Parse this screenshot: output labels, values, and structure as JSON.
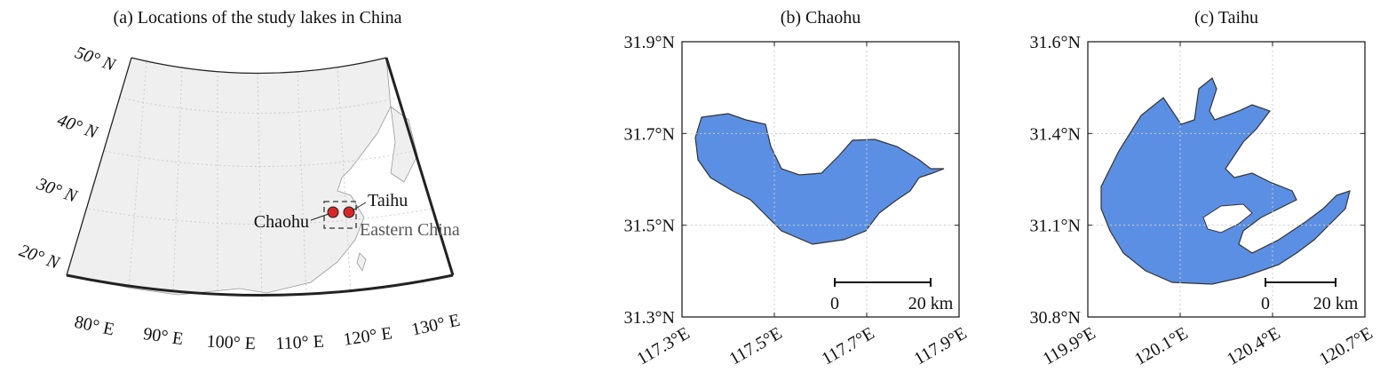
{
  "panel_a": {
    "title": "(a) Locations of the study lakes in China",
    "lat_labels": [
      "50° N",
      "40° N",
      "30° N",
      "20° N"
    ],
    "lon_labels": [
      "80° E",
      "90° E",
      "100° E",
      "110° E",
      "120° E",
      "130° E"
    ],
    "lakes": [
      "Chaohu",
      "Taihu"
    ],
    "region_label": "Eastern China"
  },
  "panel_b": {
    "title": "(b) Chaohu",
    "yticks": [
      "31.9°N",
      "31.7°N",
      "31.5°N",
      "31.3°N"
    ],
    "xticks": [
      "117.3°E",
      "117.5°E",
      "117.7°E",
      "117.9°E"
    ],
    "scale_bar": [
      "0",
      "20 km"
    ]
  },
  "panel_c": {
    "title": "(c) Taihu",
    "yticks": [
      "31.6°N",
      "31.4°N",
      "31.1°N",
      "30.8°N"
    ],
    "xticks": [
      "119.9°E",
      "120.1°E",
      "120.4°E",
      "120.7°E"
    ],
    "scale_bar": [
      "0",
      "20 km"
    ]
  }
}
